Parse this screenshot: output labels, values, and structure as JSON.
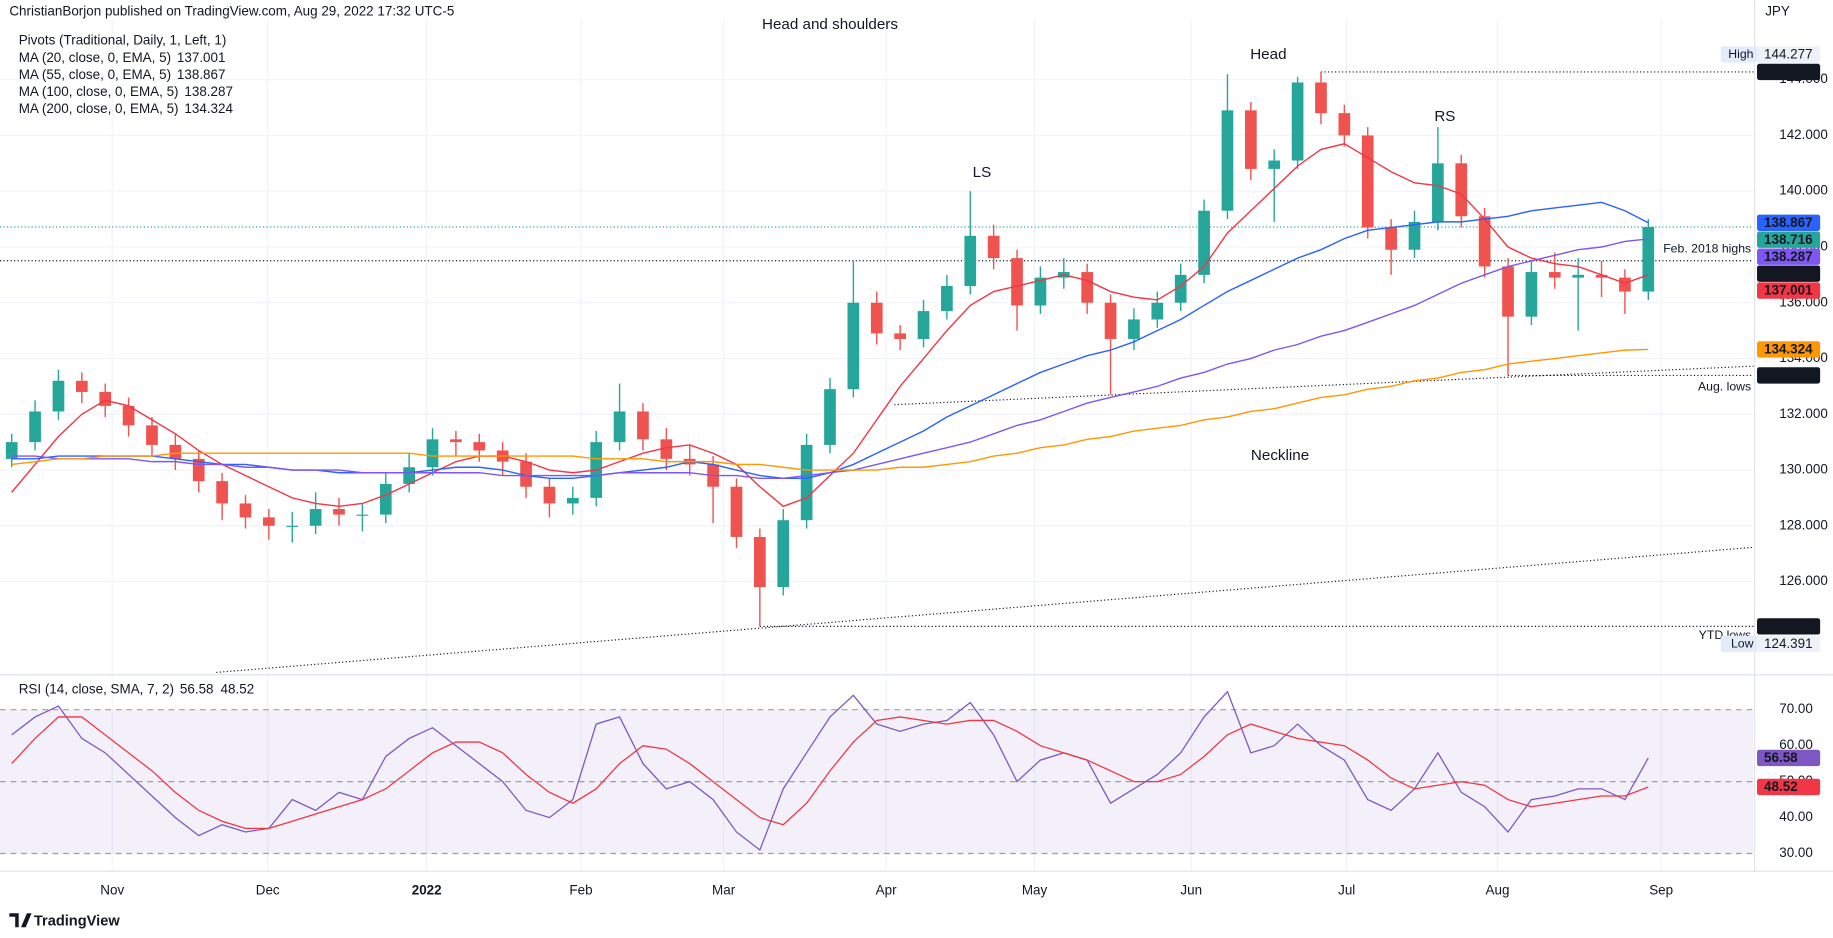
{
  "header": "ChristianBorjon published on TradingView.com, Aug 29, 2022 17:32 UTC-5",
  "footer": "TradingView",
  "chart_data": [
    {
      "type": "candlestick",
      "title": "Head and shoulders",
      "currency": "JPY",
      "legend_header": "Pivots (Traditional, Daily, 1, Left, 1)",
      "up_color": "#26a69a",
      "down_color": "#ef5350",
      "grid": true,
      "categories": [
        null,
        null,
        null,
        null,
        null,
        null,
        null,
        null,
        null,
        null,
        null,
        null,
        null,
        null,
        null,
        null,
        null,
        null,
        null,
        null,
        null,
        null,
        null,
        null,
        null,
        null,
        null,
        null,
        null,
        null,
        null,
        null,
        null,
        null,
        null,
        null,
        null,
        null,
        null,
        null,
        null,
        null,
        null,
        null,
        null,
        null,
        null,
        null,
        null,
        null,
        null,
        null,
        null,
        null,
        null,
        null,
        null,
        null,
        null,
        null,
        null,
        null,
        null,
        null,
        null,
        null,
        null,
        null,
        null,
        null,
        null
      ],
      "ohlc": [
        [
          130.4,
          131.3,
          130.1,
          131.0
        ],
        [
          131.0,
          132.5,
          130.7,
          132.1
        ],
        [
          132.1,
          133.6,
          131.8,
          133.2
        ],
        [
          133.2,
          133.5,
          132.4,
          132.8
        ],
        [
          132.8,
          133.1,
          131.9,
          132.3
        ],
        [
          132.3,
          132.6,
          131.2,
          131.6
        ],
        [
          131.6,
          131.9,
          130.5,
          130.9
        ],
        [
          130.9,
          131.3,
          130.0,
          130.4
        ],
        [
          130.4,
          130.7,
          129.2,
          129.6
        ],
        [
          129.6,
          129.9,
          128.2,
          128.8
        ],
        [
          128.8,
          129.1,
          127.9,
          128.3
        ],
        [
          128.3,
          128.6,
          127.5,
          128.0
        ],
        [
          128.0,
          128.5,
          127.4,
          128.0
        ],
        [
          128.0,
          129.2,
          127.7,
          128.6
        ],
        [
          128.6,
          129.0,
          128.0,
          128.4
        ],
        [
          128.4,
          128.8,
          127.8,
          128.4
        ],
        [
          128.4,
          129.9,
          128.1,
          129.5
        ],
        [
          129.5,
          130.6,
          129.2,
          130.1
        ],
        [
          130.1,
          131.5,
          129.8,
          131.1
        ],
        [
          131.1,
          131.4,
          130.5,
          131.0
        ],
        [
          131.0,
          131.3,
          130.3,
          130.7
        ],
        [
          130.7,
          131.0,
          129.8,
          130.3
        ],
        [
          130.3,
          130.6,
          129.0,
          129.4
        ],
        [
          129.4,
          129.7,
          128.3,
          128.8
        ],
        [
          128.8,
          129.4,
          128.4,
          129.0
        ],
        [
          129.0,
          131.4,
          128.7,
          131.0
        ],
        [
          131.0,
          133.1,
          130.7,
          132.1
        ],
        [
          132.1,
          132.4,
          130.7,
          131.1
        ],
        [
          131.1,
          131.5,
          130.0,
          130.4
        ],
        [
          130.4,
          130.9,
          129.8,
          130.2
        ],
        [
          130.2,
          130.5,
          128.1,
          129.4
        ],
        [
          129.4,
          129.7,
          127.2,
          127.6
        ],
        [
          127.6,
          127.9,
          124.391,
          125.8
        ],
        [
          125.8,
          128.6,
          125.5,
          128.2
        ],
        [
          128.2,
          131.3,
          127.9,
          130.9
        ],
        [
          130.9,
          133.3,
          130.6,
          132.9
        ],
        [
          132.9,
          137.5,
          132.6,
          136.0
        ],
        [
          136.0,
          136.4,
          134.5,
          134.9
        ],
        [
          134.9,
          135.2,
          134.3,
          134.7
        ],
        [
          134.7,
          136.1,
          134.4,
          135.7
        ],
        [
          135.7,
          137.0,
          135.4,
          136.6
        ],
        [
          136.6,
          140.0,
          136.3,
          138.4
        ],
        [
          138.4,
          138.8,
          137.2,
          137.6
        ],
        [
          137.6,
          137.9,
          135.0,
          135.9
        ],
        [
          135.9,
          137.3,
          135.6,
          136.9
        ],
        [
          136.9,
          137.6,
          136.5,
          137.1
        ],
        [
          137.1,
          137.4,
          135.6,
          136.0
        ],
        [
          136.0,
          136.3,
          132.7,
          134.7
        ],
        [
          134.7,
          135.8,
          134.3,
          135.4
        ],
        [
          135.4,
          136.4,
          135.1,
          136.0
        ],
        [
          136.0,
          137.4,
          135.7,
          137.0
        ],
        [
          137.0,
          139.7,
          136.7,
          139.3
        ],
        [
          139.3,
          144.2,
          139.0,
          142.9
        ],
        [
          142.9,
          143.2,
          140.4,
          140.8
        ],
        [
          140.8,
          141.5,
          138.9,
          141.1
        ],
        [
          141.1,
          144.1,
          140.8,
          143.9
        ],
        [
          143.9,
          144.277,
          142.4,
          142.8
        ],
        [
          142.8,
          143.1,
          141.6,
          142.0
        ],
        [
          142.0,
          142.3,
          138.3,
          138.7
        ],
        [
          138.7,
          139.0,
          137.0,
          137.9
        ],
        [
          137.9,
          139.3,
          137.6,
          138.9
        ],
        [
          138.9,
          142.3,
          138.6,
          141.0
        ],
        [
          141.0,
          141.3,
          138.7,
          139.1
        ],
        [
          139.1,
          139.4,
          136.9,
          137.3
        ],
        [
          137.3,
          137.6,
          133.392,
          135.5
        ],
        [
          135.5,
          137.5,
          135.2,
          137.1
        ],
        [
          137.1,
          137.8,
          136.5,
          136.9
        ],
        [
          136.9,
          137.6,
          135.0,
          137.0
        ],
        [
          137.0,
          137.5,
          136.2,
          136.9
        ],
        [
          136.9,
          137.2,
          135.6,
          136.4
        ],
        [
          136.4,
          139.0,
          136.1,
          138.716
        ]
      ],
      "series": [
        {
          "name": "MA (20, close, 0, EMA, 5)",
          "color": "#f23645",
          "values": [
            129.2,
            130.2,
            131.2,
            132.0,
            132.5,
            132.3,
            131.8,
            131.3,
            130.7,
            130.2,
            129.8,
            129.4,
            129.0,
            128.8,
            128.7,
            128.8,
            129.1,
            129.5,
            129.9,
            130.3,
            130.5,
            130.5,
            130.3,
            130.0,
            129.9,
            130.0,
            130.3,
            130.6,
            130.8,
            130.9,
            130.6,
            130.2,
            129.4,
            128.7,
            129.0,
            129.8,
            130.6,
            131.8,
            133.0,
            134.0,
            135.0,
            135.9,
            136.4,
            136.6,
            136.8,
            137.0,
            136.8,
            136.4,
            136.2,
            136.1,
            136.6,
            137.3,
            138.5,
            139.3,
            140.1,
            140.9,
            141.5,
            141.7,
            141.2,
            140.7,
            140.3,
            140.2,
            139.9,
            139.0,
            138.0,
            137.6,
            137.4,
            137.3,
            137.0,
            136.7,
            137.001
          ]
        },
        {
          "name": "MA (55, close, 0, EMA, 5)",
          "color": "#2962ff",
          "values": [
            130.4,
            130.4,
            130.5,
            130.5,
            130.5,
            130.5,
            130.5,
            130.4,
            130.3,
            130.2,
            130.2,
            130.1,
            130.0,
            130.0,
            129.9,
            129.9,
            129.9,
            129.9,
            130.0,
            130.1,
            130.1,
            130.0,
            129.8,
            129.7,
            129.7,
            129.8,
            129.9,
            130.0,
            130.1,
            130.3,
            130.2,
            130.0,
            129.8,
            129.7,
            129.7,
            129.9,
            130.2,
            130.6,
            131.0,
            131.4,
            131.9,
            132.3,
            132.7,
            133.1,
            133.5,
            133.8,
            134.1,
            134.3,
            134.6,
            135.0,
            135.4,
            135.9,
            136.4,
            136.8,
            137.2,
            137.6,
            137.9,
            138.3,
            138.6,
            138.7,
            138.8,
            138.9,
            138.9,
            139.0,
            139.1,
            139.3,
            139.4,
            139.5,
            139.6,
            139.3,
            138.867
          ]
        },
        {
          "name": "MA (100, close, 0, EMA, 5)",
          "color": "#7e57f2",
          "values": [
            130.5,
            130.5,
            130.4,
            130.4,
            130.4,
            130.4,
            130.3,
            130.3,
            130.2,
            130.2,
            130.1,
            130.1,
            130.0,
            130.0,
            130.0,
            129.9,
            129.9,
            129.9,
            129.9,
            129.9,
            129.9,
            129.8,
            129.8,
            129.8,
            129.8,
            129.8,
            129.9,
            129.9,
            129.9,
            129.9,
            129.8,
            129.8,
            129.7,
            129.7,
            129.8,
            129.9,
            130.0,
            130.2,
            130.4,
            130.6,
            130.8,
            131.0,
            131.3,
            131.6,
            131.8,
            132.1,
            132.4,
            132.6,
            132.8,
            133.0,
            133.3,
            133.5,
            133.8,
            134.0,
            134.3,
            134.5,
            134.8,
            135.0,
            135.3,
            135.6,
            135.9,
            136.3,
            136.7,
            137.0,
            137.3,
            137.5,
            137.7,
            137.9,
            138.0,
            138.2,
            138.287
          ]
        },
        {
          "name": "MA (200, close, 0, EMA, 5)",
          "color": "#ff9800",
          "values": [
            130.2,
            130.3,
            130.4,
            130.4,
            130.5,
            130.5,
            130.5,
            130.6,
            130.6,
            130.6,
            130.6,
            130.6,
            130.6,
            130.6,
            130.6,
            130.6,
            130.6,
            130.6,
            130.5,
            130.5,
            130.5,
            130.5,
            130.5,
            130.5,
            130.5,
            130.4,
            130.4,
            130.4,
            130.3,
            130.3,
            130.3,
            130.2,
            130.2,
            130.1,
            130.0,
            130.0,
            130.0,
            130.0,
            130.1,
            130.1,
            130.2,
            130.3,
            130.5,
            130.6,
            130.8,
            130.9,
            131.1,
            131.2,
            131.4,
            131.5,
            131.6,
            131.8,
            131.9,
            132.1,
            132.2,
            132.4,
            132.6,
            132.7,
            132.9,
            133.0,
            133.2,
            133.3,
            133.5,
            133.6,
            133.8,
            133.9,
            134.0,
            134.1,
            134.2,
            134.3,
            134.324
          ]
        }
      ],
      "levels": [
        {
          "value": 144.277,
          "color": "#131722"
        },
        {
          "value": 137.506,
          "color": "#131722",
          "label": "Feb. 2018 highs"
        },
        {
          "value": 133.392,
          "color": "#131722",
          "label": "Aug. lows"
        },
        {
          "value": 124.391,
          "color": "#131722",
          "label": "YTD lows"
        }
      ],
      "extremes": [
        {
          "label": "High",
          "value": 144.277
        },
        {
          "label": "Low",
          "value": 124.391
        }
      ],
      "annotations": [
        "Head and shoulders",
        "Head",
        "LS",
        "RS",
        "Neckline"
      ],
      "xlim": [
        -0.5,
        74.5
      ],
      "xticks": [
        {
          "value": 4.3,
          "label": "Nov"
        },
        {
          "value": 10.95,
          "label": "Dec"
        },
        {
          "value": 17.75,
          "label": "2022"
        },
        {
          "value": 24.35,
          "label": "Feb"
        },
        {
          "value": 30.45,
          "label": "Mar"
        },
        {
          "value": 37.4,
          "label": "Apr"
        },
        {
          "value": 43.75,
          "label": "May"
        },
        {
          "value": 50.45,
          "label": "Jun"
        },
        {
          "value": 57.1,
          "label": "Jul"
        },
        {
          "value": 63.55,
          "label": "Aug"
        },
        {
          "value": 70.55,
          "label": "Sep"
        }
      ],
      "ylim": [
        122.74,
        146.85
      ],
      "yticks": [
        {
          "value": 126,
          "label": "126.000"
        },
        {
          "value": 128,
          "label": "128.000"
        },
        {
          "value": 130,
          "label": "130.000"
        },
        {
          "value": 132,
          "label": "132.000"
        },
        {
          "value": 134,
          "label": "134.000"
        },
        {
          "value": 136,
          "label": "136.000"
        },
        {
          "value": 138,
          "label": "138.000"
        },
        {
          "value": 140,
          "label": "140.000"
        },
        {
          "value": 142,
          "label": "142.000"
        },
        {
          "value": 144,
          "label": "144.000"
        }
      ]
    },
    {
      "type": "line",
      "title": "RSI (14, close, SMA, 7, 2)",
      "series": [
        {
          "color": "#7e57c2",
          "values": [
            63,
            68,
            71,
            62,
            58,
            52,
            46,
            40,
            35,
            38,
            36,
            37,
            45,
            42,
            47,
            45,
            57,
            62,
            65,
            60,
            55,
            50,
            42,
            40,
            45,
            66,
            68,
            55,
            48,
            50,
            45,
            36,
            31,
            48,
            58,
            68,
            74,
            66,
            64,
            66,
            67,
            72,
            63,
            50,
            56,
            58,
            56,
            44,
            48,
            52,
            58,
            68,
            75,
            58,
            60,
            66,
            60,
            56,
            45,
            42,
            48,
            58,
            47,
            43,
            36,
            45,
            46,
            48,
            48,
            45,
            56.58
          ]
        },
        {
          "color": "#f23645",
          "values": [
            55,
            62,
            68,
            68,
            63,
            58,
            53,
            47,
            42,
            39,
            37,
            37,
            39,
            41,
            43,
            45,
            48,
            53,
            58,
            61,
            61,
            58,
            52,
            47,
            44,
            48,
            55,
            60,
            59,
            55,
            50,
            45,
            40,
            38,
            44,
            53,
            61,
            67,
            68,
            67,
            66,
            67,
            67,
            64,
            60,
            58,
            56,
            53,
            50,
            50,
            52,
            57,
            63,
            66,
            64,
            62,
            61,
            60,
            56,
            51,
            48,
            49,
            50,
            49,
            45,
            43,
            44,
            45,
            46,
            46,
            48.52
          ]
        }
      ],
      "levels": [
        70,
        50,
        30
      ],
      "ylim": [
        25.1,
        79.4
      ],
      "yticks": [
        {
          "value": 30,
          "label": "30.00"
        },
        {
          "value": 40,
          "label": "40.00"
        },
        {
          "value": 50,
          "label": "50.00"
        },
        {
          "value": 60,
          "label": "60.00"
        },
        {
          "value": 70,
          "label": "70.00"
        }
      ]
    }
  ]
}
